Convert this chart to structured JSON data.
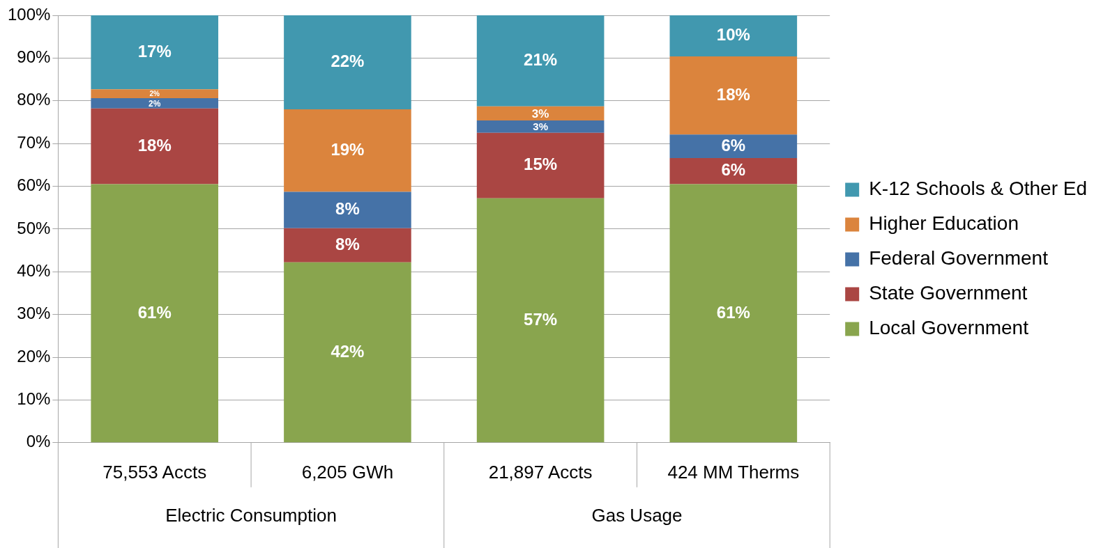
{
  "chart_data": {
    "type": "bar",
    "stacked": true,
    "categories": [
      "75,553 Accts",
      "6,205 GWh",
      "21,897 Accts",
      "424 MM Therms"
    ],
    "series": [
      {
        "name": "Local Government",
        "color": "#89a54e",
        "values": [
          60.5,
          42.2,
          57.2,
          60.5
        ],
        "value_labels": [
          "61%",
          "42%",
          "57%",
          "61%"
        ]
      },
      {
        "name": "State Government",
        "color": "#aa4643",
        "values": [
          17.7,
          8.0,
          15.3,
          6.1
        ],
        "value_labels": [
          "18%",
          "8%",
          "15%",
          "6%"
        ]
      },
      {
        "name": "Federal Government",
        "color": "#4572a7",
        "values": [
          2.4,
          8.5,
          2.9,
          5.5
        ],
        "value_labels": [
          "2%",
          "8%",
          "3%",
          "6%"
        ]
      },
      {
        "name": "Higher Education",
        "color": "#db843d",
        "values": [
          2.1,
          19.3,
          3.3,
          18.3
        ],
        "value_labels": [
          "2%",
          "19%",
          "3%",
          "18%"
        ]
      },
      {
        "name": "K-12 Schools & Other Ed",
        "color": "#4198af",
        "values": [
          17.3,
          22.0,
          21.3,
          9.6
        ],
        "value_labels": [
          "17%",
          "22%",
          "21%",
          "10%"
        ]
      }
    ],
    "ylim": [
      0,
      100
    ],
    "yticks": [
      {
        "value": 0,
        "label": "0%"
      },
      {
        "value": 10,
        "label": "10%"
      },
      {
        "value": 20,
        "label": "20%"
      },
      {
        "value": 30,
        "label": "30%"
      },
      {
        "value": 40,
        "label": "40%"
      },
      {
        "value": 50,
        "label": "50%"
      },
      {
        "value": 60,
        "label": "60%"
      },
      {
        "value": 70,
        "label": "70%"
      },
      {
        "value": 80,
        "label": "80%"
      },
      {
        "value": 90,
        "label": "90%"
      },
      {
        "value": 100,
        "label": "100%"
      }
    ],
    "grid": "y",
    "legend": "right",
    "annotations": [
      "Electric Consumption",
      "Gas Usage"
    ]
  }
}
